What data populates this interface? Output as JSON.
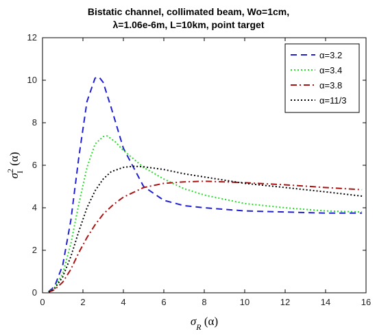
{
  "chart_data": {
    "type": "line",
    "title_line1": "Bistatic channel, collimated beam, Wo=1cm,",
    "title_line2": "λ=1.06e-6m, L=10km, point target",
    "xlabel": "σR (α)",
    "ylabel": "σI² (α)",
    "xlim": [
      0,
      16
    ],
    "ylim": [
      0,
      12
    ],
    "xticks": [
      0,
      2,
      4,
      6,
      8,
      10,
      12,
      14,
      16
    ],
    "yticks": [
      0,
      2,
      4,
      6,
      8,
      10,
      12
    ],
    "grid": false,
    "legend_position": "top-right",
    "series": [
      {
        "name": "α=3.2",
        "color": "#1f1fd0",
        "style": "dashed",
        "x": [
          0.3,
          0.6,
          1.0,
          1.4,
          1.8,
          2.2,
          2.6,
          2.8,
          3.0,
          3.4,
          4.0,
          5.0,
          6.0,
          7.0,
          8.0,
          10.0,
          12.0,
          14.0,
          15.8
        ],
        "y": [
          0.05,
          0.3,
          1.3,
          3.4,
          6.4,
          9.0,
          10.1,
          10.15,
          9.9,
          8.7,
          6.8,
          5.0,
          4.35,
          4.1,
          4.0,
          3.85,
          3.8,
          3.75,
          3.75
        ]
      },
      {
        "name": "α=3.4",
        "color": "#22dd22",
        "style": "dotted",
        "x": [
          0.3,
          0.6,
          1.0,
          1.4,
          1.8,
          2.2,
          2.6,
          3.0,
          3.2,
          3.6,
          4.0,
          5.0,
          6.0,
          7.0,
          8.0,
          10.0,
          12.0,
          14.0,
          15.8
        ],
        "y": [
          0.05,
          0.25,
          0.9,
          2.3,
          4.2,
          5.9,
          7.0,
          7.35,
          7.38,
          7.1,
          6.7,
          5.9,
          5.35,
          4.9,
          4.6,
          4.2,
          4.0,
          3.85,
          3.8
        ]
      },
      {
        "name": "α=3.8",
        "color": "#aa1111",
        "style": "dashdot",
        "x": [
          0.3,
          0.6,
          1.0,
          1.4,
          1.8,
          2.2,
          2.6,
          3.0,
          3.5,
          4.0,
          5.0,
          6.0,
          7.0,
          8.0,
          9.0,
          10.0,
          12.0,
          14.0,
          15.8
        ],
        "y": [
          0.03,
          0.15,
          0.5,
          1.1,
          1.9,
          2.6,
          3.2,
          3.7,
          4.15,
          4.5,
          4.95,
          5.15,
          5.22,
          5.25,
          5.22,
          5.18,
          5.08,
          4.95,
          4.85
        ]
      },
      {
        "name": "α=11/3",
        "color": "#000000",
        "style": "dotted",
        "x": [
          0.3,
          0.6,
          1.0,
          1.4,
          1.8,
          2.2,
          2.6,
          3.0,
          3.4,
          4.0,
          4.5,
          5.0,
          6.0,
          7.0,
          8.0,
          10.0,
          12.0,
          14.0,
          15.8
        ],
        "y": [
          0.04,
          0.2,
          0.75,
          1.7,
          2.9,
          4.0,
          4.8,
          5.35,
          5.7,
          5.9,
          5.95,
          5.93,
          5.8,
          5.6,
          5.45,
          5.15,
          4.95,
          4.75,
          4.55
        ]
      }
    ]
  }
}
